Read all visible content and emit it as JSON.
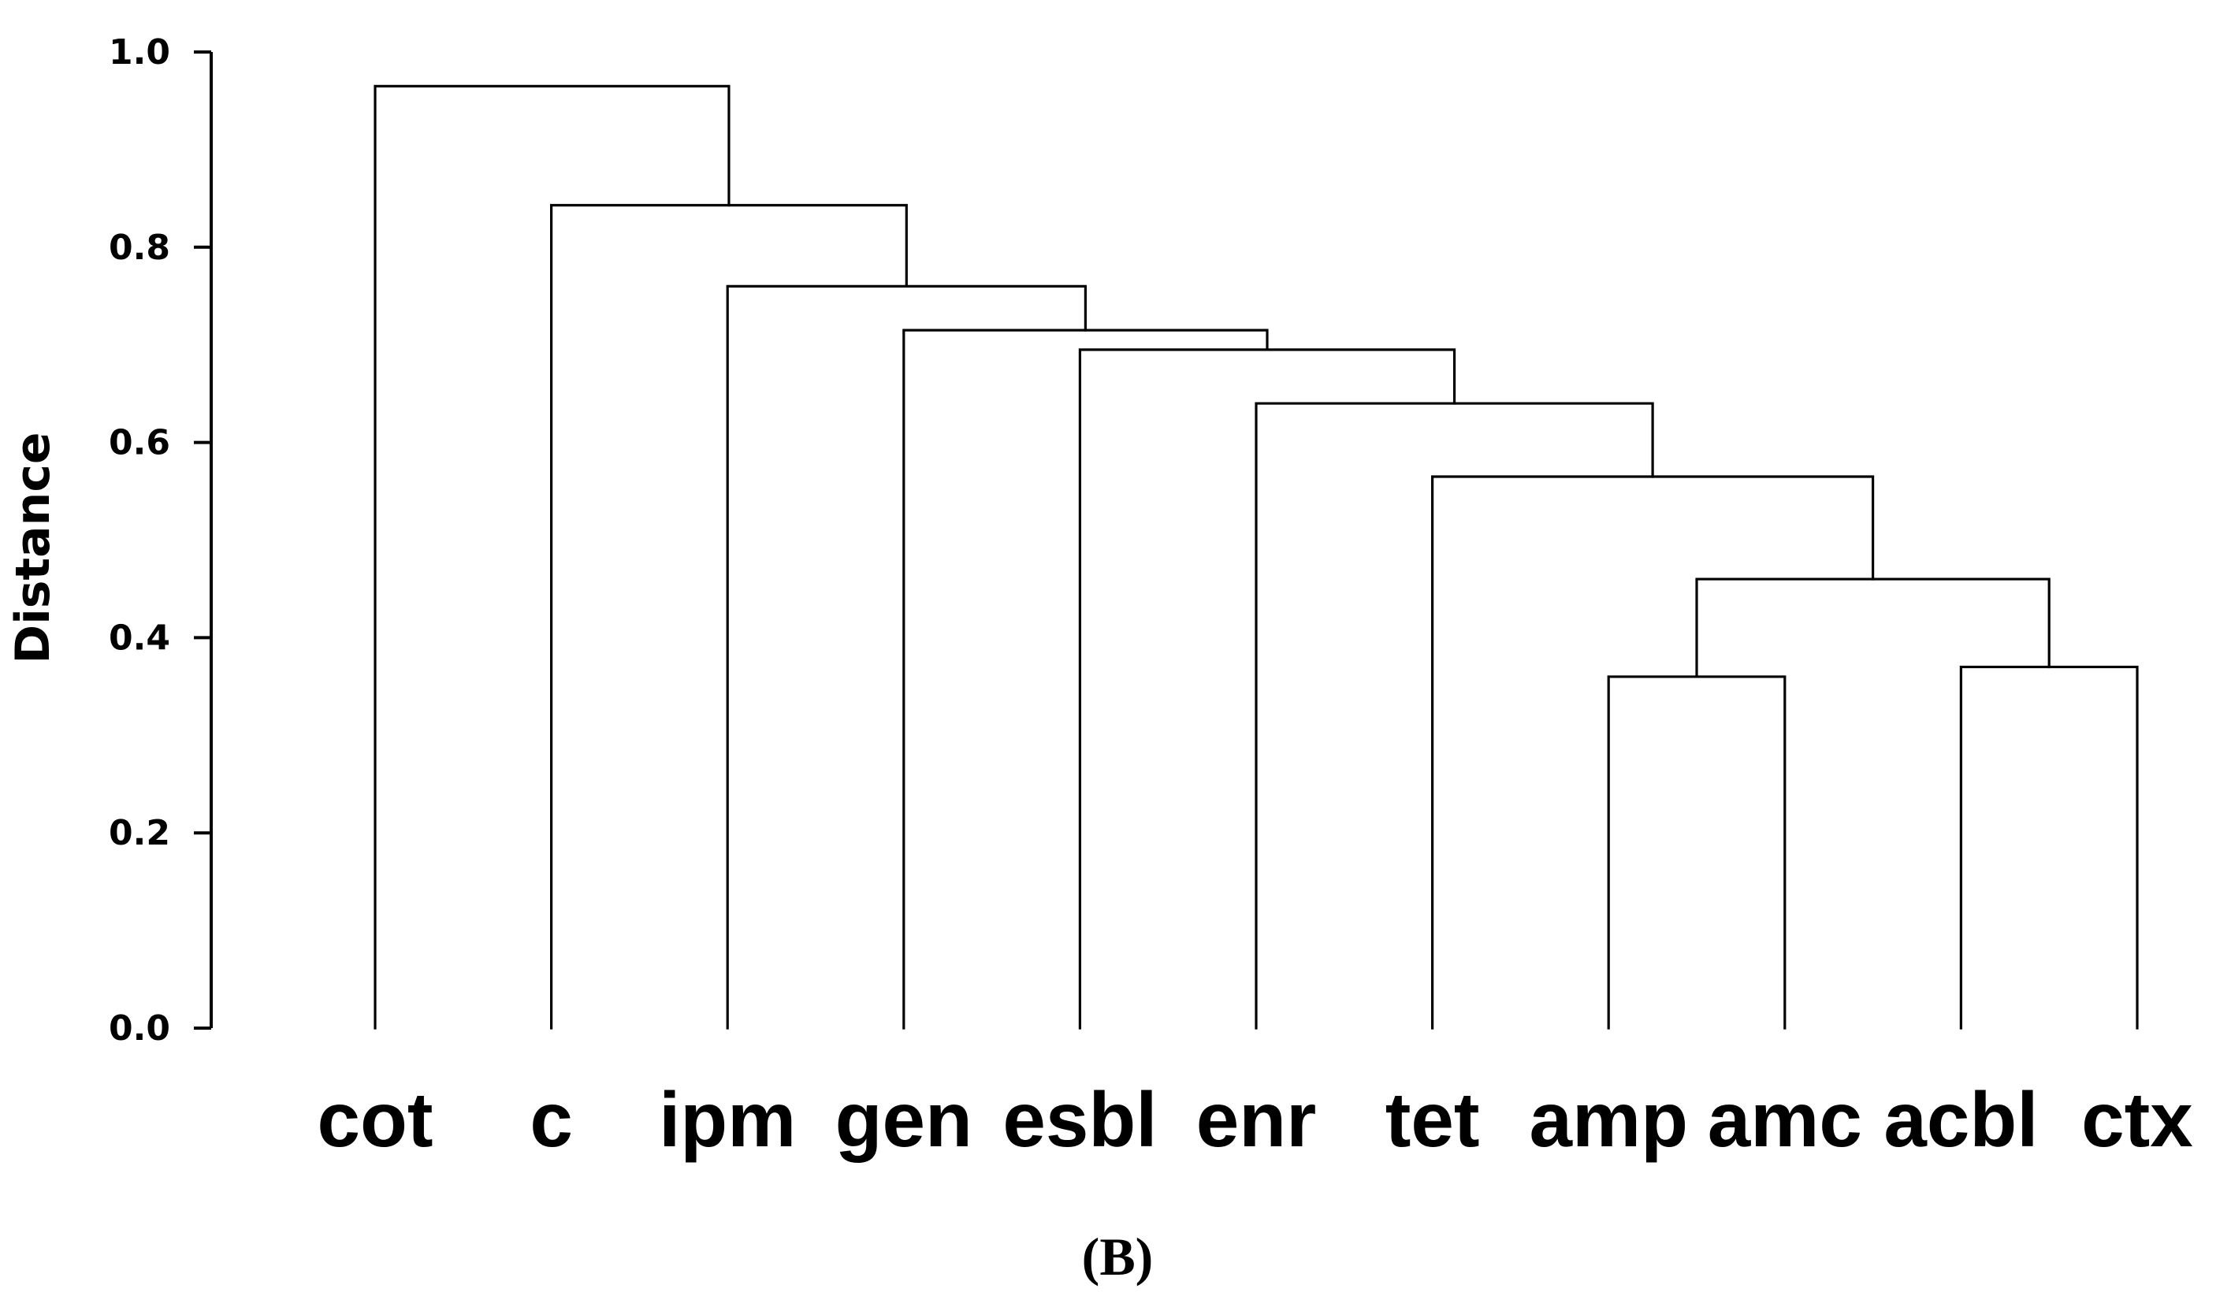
{
  "chart_data": {
    "type": "dendrogram",
    "ylabel": "Distance",
    "ylim": [
      0,
      1.0
    ],
    "yticks": [
      {
        "value": 0.0,
        "label": "0.0"
      },
      {
        "value": 0.2,
        "label": "0.2"
      },
      {
        "value": 0.4,
        "label": "0.4"
      },
      {
        "value": 0.6,
        "label": "0.6"
      },
      {
        "value": 0.8,
        "label": "0.8"
      },
      {
        "value": 1.0,
        "label": "1.0"
      }
    ],
    "leaves": [
      "cot",
      "c",
      "ipm",
      "gen",
      "esbl",
      "enr",
      "tet",
      "amp",
      "amc",
      "acbl",
      "ctx"
    ],
    "merges": [
      {
        "id": "m1",
        "left": "amp",
        "right": "amc",
        "height": 0.36
      },
      {
        "id": "m2",
        "left": "acbl",
        "right": "ctx",
        "height": 0.37
      },
      {
        "id": "m3",
        "left": "m1",
        "right": "m2",
        "height": 0.46
      },
      {
        "id": "m4",
        "left": "tet",
        "right": "m3",
        "height": 0.565
      },
      {
        "id": "m5",
        "left": "enr",
        "right": "m4",
        "height": 0.64
      },
      {
        "id": "m6",
        "left": "esbl",
        "right": "m5",
        "height": 0.695
      },
      {
        "id": "m7",
        "left": "gen",
        "right": "m6",
        "height": 0.715
      },
      {
        "id": "m8",
        "left": "ipm",
        "right": "m7",
        "height": 0.76
      },
      {
        "id": "m9",
        "left": "c",
        "right": "m8",
        "height": 0.843
      },
      {
        "id": "m10",
        "left": "cot",
        "right": "m9",
        "height": 0.965
      }
    ],
    "panel_label": "(B)"
  }
}
